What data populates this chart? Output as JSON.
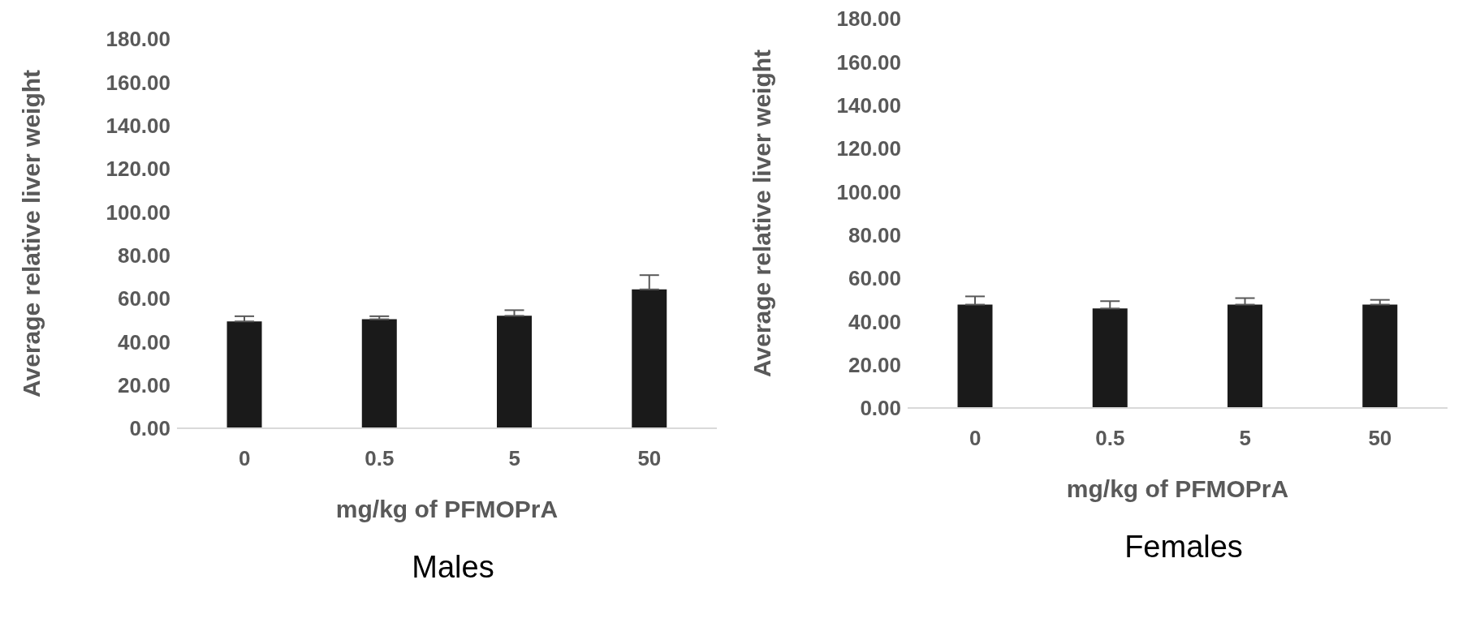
{
  "chart_data": [
    {
      "type": "bar",
      "title": "Males",
      "xlabel": "mg/kg of PFMOPrA",
      "ylabel": "Average relative liver weight",
      "categories": [
        "0",
        "0.5",
        "5",
        "50"
      ],
      "values": [
        49.4,
        50.4,
        52.0,
        64.2
      ],
      "errors": [
        [
          49.4,
          51.8
        ],
        [
          50.4,
          51.8
        ],
        [
          52.0,
          54.6
        ],
        [
          64.2,
          70.8
        ]
      ],
      "color": "#1a1a1a",
      "ylim": [
        0,
        180
      ],
      "yticks": [
        {
          "value": 0,
          "label": "0.00"
        },
        {
          "value": 20,
          "label": "20.00"
        },
        {
          "value": 40,
          "label": "40.00"
        },
        {
          "value": 60,
          "label": "60.00"
        },
        {
          "value": 80,
          "label": "80.00"
        },
        {
          "value": 100,
          "label": "100.00"
        },
        {
          "value": 120,
          "label": "120.00"
        },
        {
          "value": 140,
          "label": "140.00"
        },
        {
          "value": 160,
          "label": "160.00"
        },
        {
          "value": 180,
          "label": "180.00"
        }
      ],
      "grid": false,
      "legend": false
    },
    {
      "type": "bar",
      "title": "Females",
      "xlabel": "mg/kg of PFMOPrA",
      "ylabel": "Average relative liver weight",
      "categories": [
        "0",
        "0.5",
        "5",
        "50"
      ],
      "values": [
        47.8,
        46.0,
        47.8,
        47.8
      ],
      "errors": [
        [
          47.8,
          51.6
        ],
        [
          46.0,
          49.4
        ],
        [
          47.8,
          50.8
        ],
        [
          47.8,
          50.0
        ]
      ],
      "color": "#1a1a1a",
      "ylim": [
        0,
        180
      ],
      "yticks": [
        {
          "value": 0,
          "label": "0.00"
        },
        {
          "value": 20,
          "label": "20.00"
        },
        {
          "value": 40,
          "label": "40.00"
        },
        {
          "value": 60,
          "label": "60.00"
        },
        {
          "value": 80,
          "label": "80.00"
        },
        {
          "value": 100,
          "label": "100.00"
        },
        {
          "value": 120,
          "label": "120.00"
        },
        {
          "value": 140,
          "label": "140.00"
        },
        {
          "value": 160,
          "label": "160.00"
        },
        {
          "value": 180,
          "label": "180.00"
        }
      ],
      "grid": false,
      "legend": false
    }
  ]
}
